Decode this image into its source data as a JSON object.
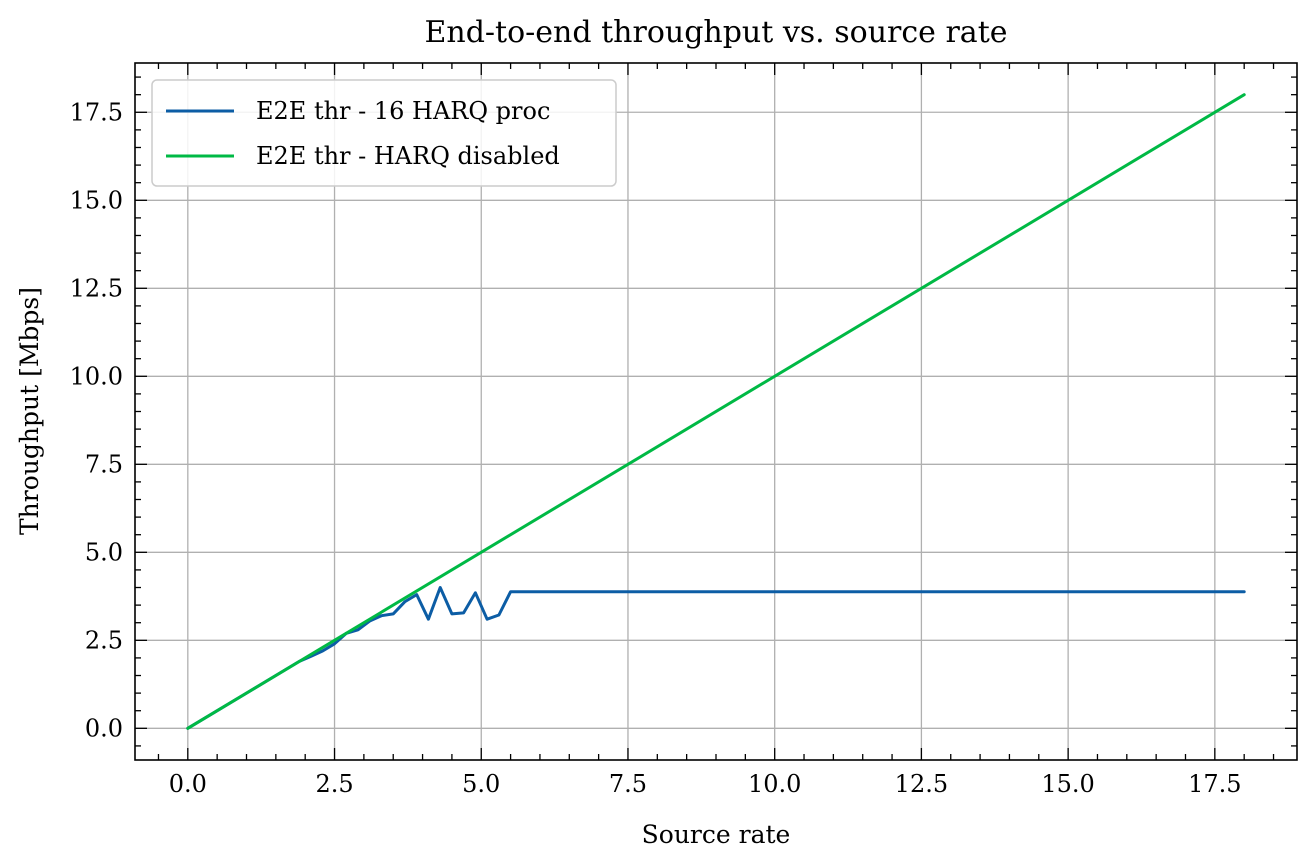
{
  "chart_data": {
    "type": "line",
    "title": "End-to-end throughput vs. source rate",
    "xlabel": "Source rate",
    "ylabel": "Throughput [Mbps]",
    "xlim": [
      -0.9,
      18.9
    ],
    "ylim": [
      -0.9,
      18.9
    ],
    "xticks": [
      0.0,
      2.5,
      5.0,
      7.5,
      10.0,
      12.5,
      15.0,
      17.5
    ],
    "yticks": [
      0.0,
      2.5,
      5.0,
      7.5,
      10.0,
      12.5,
      15.0,
      17.5
    ],
    "xtick_labels": [
      "0.0",
      "2.5",
      "5.0",
      "7.5",
      "10.0",
      "12.5",
      "15.0",
      "17.5"
    ],
    "ytick_labels": [
      "0.0",
      "2.5",
      "5.0",
      "7.5",
      "10.0",
      "12.5",
      "15.0",
      "17.5"
    ],
    "grid": true,
    "legend_position": "top-left",
    "series": [
      {
        "name": "E2E thr - 16 HARQ proc",
        "color": "#0C5DA5",
        "x": [
          0.0,
          0.5,
          1.0,
          1.5,
          1.9,
          2.1,
          2.3,
          2.5,
          2.7,
          2.9,
          3.1,
          3.3,
          3.5,
          3.7,
          3.9,
          4.1,
          4.3,
          4.5,
          4.7,
          4.9,
          5.1,
          5.3,
          5.5,
          6.0,
          8.0,
          10.0,
          12.0,
          14.0,
          16.0,
          18.0
        ],
        "y": [
          0.0,
          0.5,
          1.0,
          1.5,
          1.9,
          2.05,
          2.2,
          2.4,
          2.7,
          2.8,
          3.05,
          3.2,
          3.25,
          3.6,
          3.8,
          3.1,
          4.0,
          3.25,
          3.28,
          3.85,
          3.1,
          3.22,
          3.88,
          3.88,
          3.88,
          3.88,
          3.88,
          3.88,
          3.88,
          3.88
        ]
      },
      {
        "name": "E2E thr - HARQ disabled",
        "color": "#00B945",
        "x": [
          0.0,
          18.0
        ],
        "y": [
          0.0,
          18.0
        ]
      }
    ]
  }
}
